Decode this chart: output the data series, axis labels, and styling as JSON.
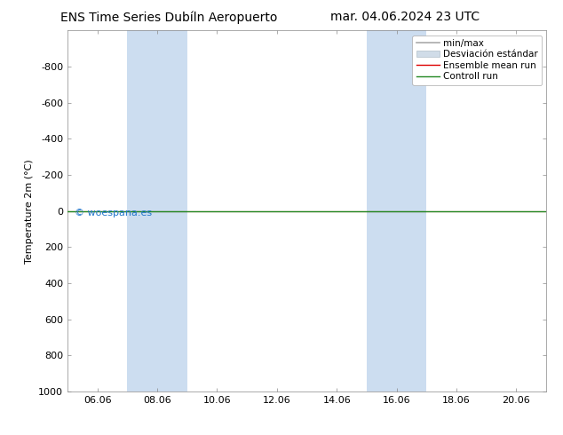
{
  "title_left": "ENS Time Series Dubíln Aeropuerto",
  "title_right": "mar. 04.06.2024 23 UTC",
  "ylabel": "Temperature 2m (°C)",
  "ylim_bottom": 1000,
  "ylim_top": -1000,
  "yticks": [
    -800,
    -600,
    -400,
    -200,
    0,
    200,
    400,
    600,
    800,
    1000
  ],
  "xlim_left": 0,
  "xlim_right": 16,
  "xtick_positions": [
    1,
    3,
    5,
    7,
    9,
    11,
    13,
    15
  ],
  "xtick_labels": [
    "06.06",
    "08.06",
    "10.06",
    "12.06",
    "14.06",
    "16.06",
    "18.06",
    "20.06"
  ],
  "shaded_regions": [
    {
      "start": 2.0,
      "end": 4.0
    },
    {
      "start": 10.0,
      "end": 12.0
    }
  ],
  "green_line_y": 0,
  "red_line_y": 0,
  "minmax_color": "#aaaaaa",
  "std_facecolor": "#d0dce8",
  "std_edgecolor": "#b0bec8",
  "ensemble_mean_color": "#dd0000",
  "control_run_color": "#228822",
  "shaded_color": "#ccddf0",
  "watermark": "© woespana.es",
  "watermark_color": "#2277cc",
  "background_color": "#ffffff",
  "legend_minmax_label": "min/max",
  "legend_std_label": "Desviación estándar",
  "legend_ensemble_label": "Ensemble mean run",
  "legend_control_label": "Controll run",
  "font_size_title": 10,
  "font_size_axis": 8,
  "font_size_legend": 7.5,
  "font_size_watermark": 8
}
